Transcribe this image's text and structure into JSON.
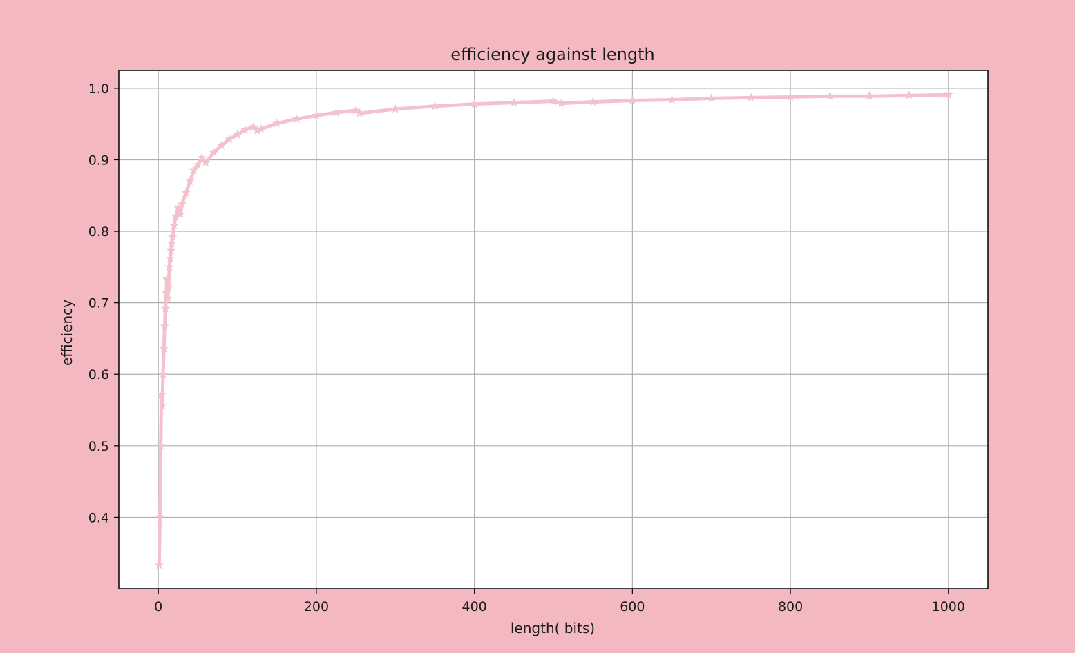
{
  "colors": {
    "figure_background": "#f4b8c1",
    "plot_background": "#ffffff",
    "series_color": "#f4c2cc",
    "grid_color": "#b0b0b0",
    "axis_color": "#000000"
  },
  "chart_data": {
    "type": "line",
    "title": "efficiency against length",
    "xlabel": "length( bits)",
    "ylabel": "efficiency",
    "xlim": [
      -50,
      1050
    ],
    "ylim": [
      0.3,
      1.025
    ],
    "xticks": [
      0,
      200,
      400,
      600,
      800,
      1000
    ],
    "xtick_labels": [
      "0",
      "200",
      "400",
      "600",
      "800",
      "1000"
    ],
    "yticks": [
      0.4,
      0.5,
      0.6,
      0.7,
      0.8,
      0.9,
      1.0
    ],
    "ytick_labels": [
      "0.4",
      "0.5",
      "0.6",
      "0.7",
      "0.8",
      "0.9",
      "1.0"
    ],
    "grid": true,
    "marker": "star",
    "series": [
      {
        "x": [
          1,
          2,
          3,
          4,
          5,
          6,
          7,
          8,
          9,
          10,
          11,
          12,
          13,
          14,
          15,
          16,
          17,
          18,
          20,
          22,
          25,
          28,
          30,
          35,
          40,
          45,
          50,
          55,
          60,
          70,
          80,
          90,
          100,
          110,
          120,
          125,
          130,
          150,
          175,
          200,
          225,
          250,
          255,
          300,
          350,
          400,
          450,
          500,
          510,
          550,
          600,
          650,
          700,
          750,
          800,
          850,
          900,
          950,
          1000
        ],
        "y": [
          0.333,
          0.4,
          0.5,
          0.571,
          0.556,
          0.6,
          0.636,
          0.667,
          0.692,
          0.714,
          0.733,
          0.706,
          0.722,
          0.75,
          0.762,
          0.773,
          0.783,
          0.792,
          0.808,
          0.821,
          0.833,
          0.824,
          0.838,
          0.854,
          0.87,
          0.885,
          0.893,
          0.903,
          0.896,
          0.91,
          0.92,
          0.929,
          0.935,
          0.942,
          0.946,
          0.941,
          0.943,
          0.951,
          0.957,
          0.962,
          0.966,
          0.969,
          0.965,
          0.971,
          0.975,
          0.978,
          0.98,
          0.982,
          0.979,
          0.981,
          0.983,
          0.984,
          0.986,
          0.987,
          0.988,
          0.989,
          0.989,
          0.99,
          0.991
        ]
      }
    ]
  }
}
